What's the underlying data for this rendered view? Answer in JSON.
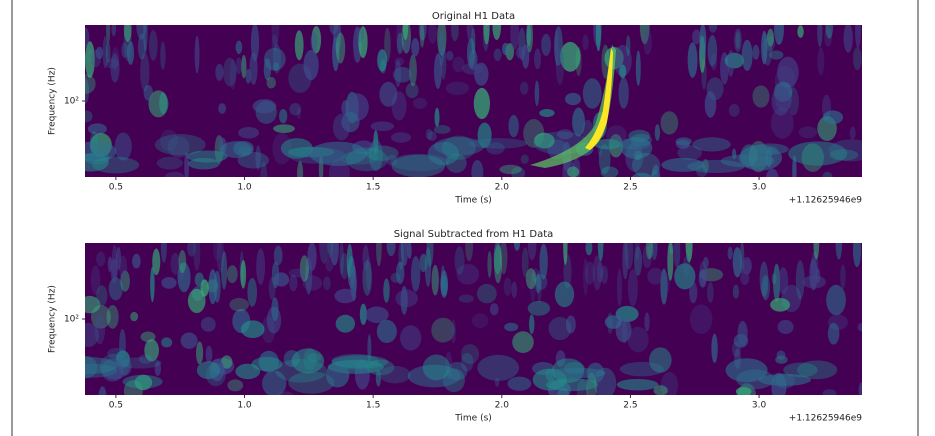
{
  "chart_data": [
    {
      "type": "spectrogram",
      "title": "Original H1 Data",
      "xlabel": "Time (s)",
      "ylabel": "Frequency (Hz)",
      "x_offset": "+1.12625946e9",
      "xlim": [
        0.38,
        3.4
      ],
      "xticks": [
        0.5,
        {
          "value": 1,
          "label": "1.0"
        },
        1.5,
        {
          "value": 2,
          "label": "2.0"
        },
        2.5,
        {
          "value": 3,
          "label": "3.0"
        }
      ],
      "ylim": [
        20,
        500
      ],
      "yticks": [
        {
          "value": 100,
          "label": "10²"
        }
      ],
      "log_y": true,
      "background": "#440154"
    },
    {
      "type": "spectrogram",
      "title": "Signal Subtracted from H1 Data",
      "xlabel": "Time (s)",
      "ylabel": "Frequency (Hz)",
      "x_offset": "+1.12625946e9",
      "xlim": [
        0.38,
        3.4
      ],
      "xticks": [
        0.5,
        {
          "value": 1,
          "label": "1.0"
        },
        1.5,
        {
          "value": 2,
          "label": "2.0"
        },
        2.5,
        {
          "value": 3,
          "label": "3.0"
        }
      ],
      "ylim": [
        20,
        500
      ],
      "yticks": [
        {
          "value": 100,
          "label": "10²"
        }
      ],
      "log_y": true,
      "background": "#440154"
    }
  ]
}
